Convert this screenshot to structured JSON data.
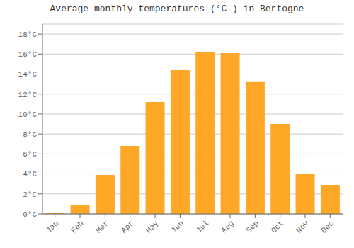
{
  "chart_data": {
    "type": "bar",
    "title": "Average monthly temperatures (°C ) in Bertogne",
    "categories": [
      "Jan",
      "Feb",
      "Mar",
      "Apr",
      "May",
      "Jun",
      "Jul",
      "Aug",
      "Sep",
      "Oct",
      "Nov",
      "Dec"
    ],
    "values": [
      0.1,
      0.9,
      3.9,
      6.8,
      11.2,
      14.4,
      16.2,
      16.1,
      13.2,
      9.0,
      4.0,
      2.9
    ],
    "color": "#FFA726",
    "ylim": [
      0,
      19
    ],
    "yticks": [
      {
        "value": 0,
        "label": "0°C"
      },
      {
        "value": 2,
        "label": "2°C"
      },
      {
        "value": 4,
        "label": "4°C"
      },
      {
        "value": 6,
        "label": "6°C"
      },
      {
        "value": 8,
        "label": "8°C"
      },
      {
        "value": 10,
        "label": "10°C"
      },
      {
        "value": 12,
        "label": "12°C"
      },
      {
        "value": 14,
        "label": "14°C"
      },
      {
        "value": 16,
        "label": "16°C"
      },
      {
        "value": 18,
        "label": "18°C"
      }
    ],
    "grid": true
  }
}
